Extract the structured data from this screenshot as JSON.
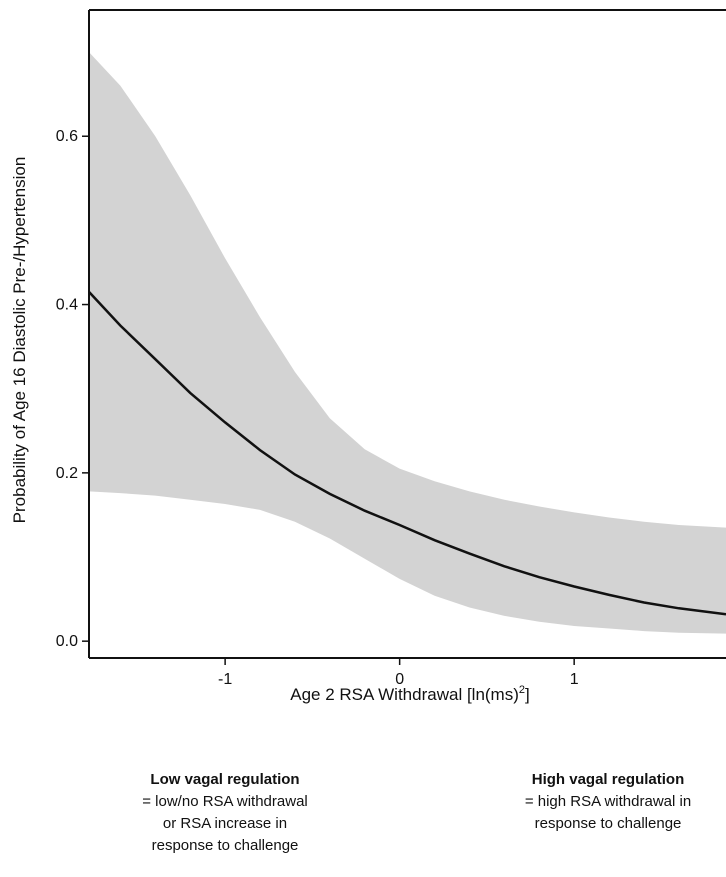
{
  "chart_data": {
    "type": "line",
    "title": "",
    "xlabel": "Age 2 RSA Withdrawal [ln(ms)",
    "xlabel_sup": "2",
    "xlabel_end": "]",
    "ylabel": "Probability of Age 16 Diastolic Pre-/Hypertension",
    "xlim": [
      -1.78,
      1.87
    ],
    "ylim": [
      -0.02,
      0.75
    ],
    "x_ticks": [
      -1,
      0,
      1
    ],
    "x_tick_labels": [
      "-1",
      "0",
      "1"
    ],
    "y_ticks": [
      0.0,
      0.2,
      0.4,
      0.6
    ],
    "y_tick_labels": [
      "0.0",
      "0.2",
      "0.4",
      "0.6"
    ],
    "grid": false,
    "colors": {
      "line": "#111111",
      "band": "#d3d3d3",
      "axis": "#111111"
    },
    "series": [
      {
        "x": [
          -1.78,
          -1.6,
          -1.4,
          -1.2,
          -1.0,
          -0.8,
          -0.6,
          -0.4,
          -0.2,
          0.0,
          0.2,
          0.4,
          0.6,
          0.8,
          1.0,
          1.2,
          1.4,
          1.6,
          1.87
        ],
        "y": [
          0.415,
          0.375,
          0.335,
          0.295,
          0.26,
          0.227,
          0.198,
          0.175,
          0.155,
          0.138,
          0.12,
          0.104,
          0.089,
          0.076,
          0.065,
          0.055,
          0.046,
          0.039,
          0.032
        ],
        "lower": [
          0.178,
          0.176,
          0.173,
          0.168,
          0.163,
          0.156,
          0.142,
          0.122,
          0.098,
          0.074,
          0.054,
          0.04,
          0.03,
          0.023,
          0.018,
          0.015,
          0.012,
          0.01,
          0.009
        ],
        "upper": [
          0.7,
          0.66,
          0.6,
          0.53,
          0.455,
          0.385,
          0.32,
          0.265,
          0.228,
          0.205,
          0.19,
          0.178,
          0.168,
          0.16,
          0.153,
          0.147,
          0.142,
          0.138,
          0.135
        ]
      }
    ]
  },
  "annotations": {
    "left": {
      "heading": "Low vagal regulation",
      "lines": [
        "= low/no RSA withdrawal",
        "or RSA increase in",
        "response to challenge"
      ]
    },
    "right": {
      "heading": "High vagal regulation",
      "lines": [
        "= high RSA withdrawal in",
        "response to challenge"
      ]
    }
  }
}
